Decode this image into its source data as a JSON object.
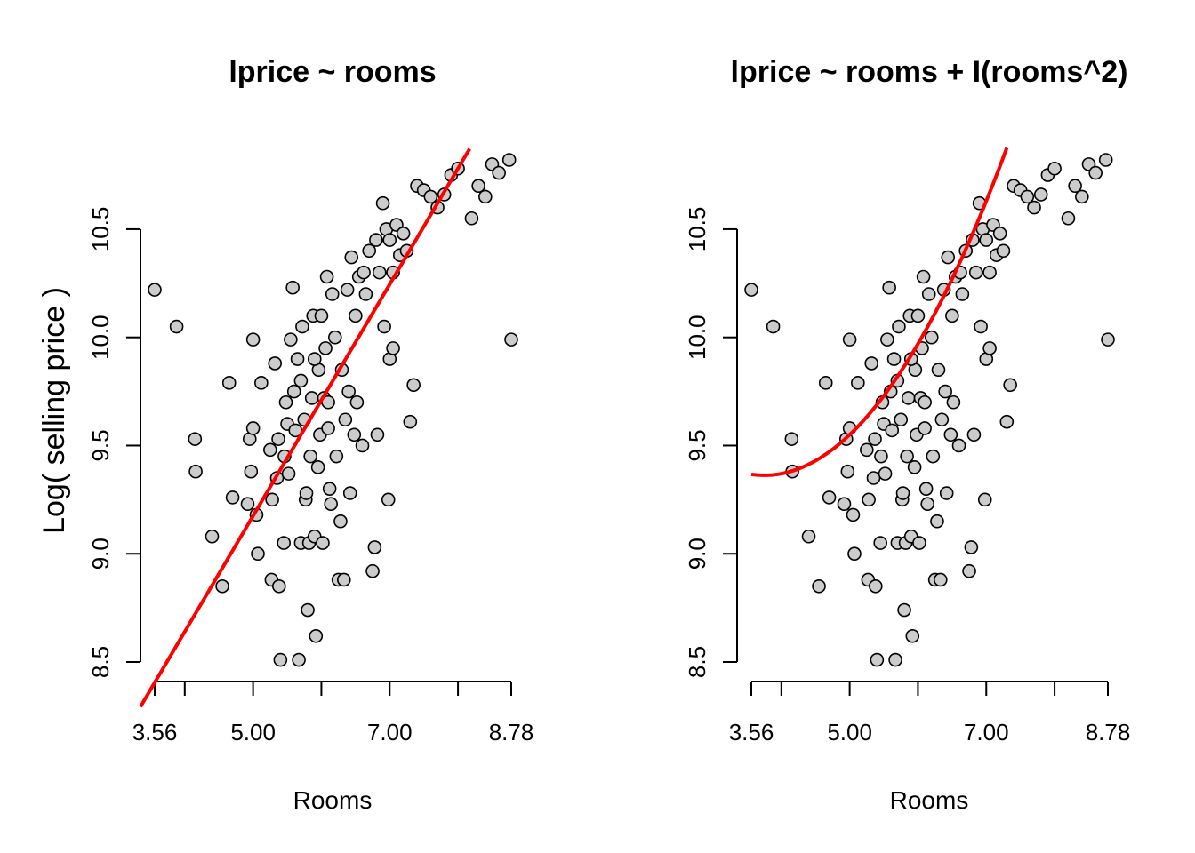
{
  "chart_data": [
    {
      "type": "scatter",
      "title": "lprice ~ rooms",
      "xlabel": "Rooms",
      "ylabel": "Log( selling price )",
      "x_ticks": [
        "3.56",
        "5.00",
        "7.00",
        "8.78"
      ],
      "x_minor_ticks": [
        3.56,
        4,
        5,
        6,
        7,
        8,
        8.78
      ],
      "y_ticks": [
        "8.5",
        "9.0",
        "9.5",
        "10.0",
        "10.5"
      ],
      "xlim": [
        3.56,
        8.78
      ],
      "ylim": [
        8.5,
        10.82
      ],
      "fit": {
        "type": "linear",
        "intercept": 6.5,
        "slope": 0.535,
        "color": "#ff0000"
      },
      "point_color": "#cccccc",
      "series": [
        {
          "values": [
            [
              3.56,
              10.22
            ],
            [
              3.88,
              10.05
            ],
            [
              4.15,
              9.53
            ],
            [
              4.16,
              9.38
            ],
            [
              4.4,
              9.08
            ],
            [
              4.55,
              8.85
            ],
            [
              4.65,
              9.79
            ],
            [
              4.7,
              9.26
            ],
            [
              4.92,
              9.23
            ],
            [
              4.95,
              9.53
            ],
            [
              4.97,
              9.38
            ],
            [
              5.0,
              9.99
            ],
            [
              5.0,
              9.58
            ],
            [
              5.05,
              9.18
            ],
            [
              5.07,
              9.0
            ],
            [
              5.12,
              9.79
            ],
            [
              5.25,
              9.48
            ],
            [
              5.27,
              8.88
            ],
            [
              5.28,
              9.25
            ],
            [
              5.32,
              9.88
            ],
            [
              5.35,
              9.35
            ],
            [
              5.37,
              9.53
            ],
            [
              5.38,
              8.85
            ],
            [
              5.4,
              8.51
            ],
            [
              5.45,
              9.05
            ],
            [
              5.46,
              9.45
            ],
            [
              5.48,
              9.7
            ],
            [
              5.5,
              9.6
            ],
            [
              5.52,
              9.37
            ],
            [
              5.55,
              9.99
            ],
            [
              5.58,
              10.23
            ],
            [
              5.6,
              9.75
            ],
            [
              5.62,
              9.57
            ],
            [
              5.65,
              9.9
            ],
            [
              5.67,
              8.51
            ],
            [
              5.7,
              9.05
            ],
            [
              5.72,
              10.05
            ],
            [
              5.75,
              9.62
            ],
            [
              5.77,
              9.25
            ],
            [
              5.78,
              9.28
            ],
            [
              5.8,
              8.74
            ],
            [
              5.82,
              9.05
            ],
            [
              5.84,
              9.45
            ],
            [
              5.86,
              9.72
            ],
            [
              5.88,
              10.1
            ],
            [
              5.9,
              9.08
            ],
            [
              5.92,
              8.62
            ],
            [
              5.95,
              9.4
            ],
            [
              5.96,
              9.85
            ],
            [
              5.98,
              9.55
            ],
            [
              6.0,
              10.1
            ],
            [
              6.02,
              9.05
            ],
            [
              6.04,
              9.72
            ],
            [
              6.06,
              9.95
            ],
            [
              6.08,
              10.28
            ],
            [
              6.1,
              9.58
            ],
            [
              6.12,
              9.3
            ],
            [
              6.14,
              9.23
            ],
            [
              6.16,
              10.2
            ],
            [
              6.2,
              10.0
            ],
            [
              6.22,
              9.45
            ],
            [
              6.25,
              8.88
            ],
            [
              6.28,
              9.15
            ],
            [
              6.3,
              9.85
            ],
            [
              6.33,
              8.88
            ],
            [
              6.35,
              9.62
            ],
            [
              6.38,
              10.22
            ],
            [
              6.4,
              9.75
            ],
            [
              6.42,
              9.28
            ],
            [
              6.44,
              10.37
            ],
            [
              6.48,
              9.55
            ],
            [
              6.5,
              10.1
            ],
            [
              6.55,
              10.28
            ],
            [
              6.6,
              9.5
            ],
            [
              6.62,
              10.3
            ],
            [
              6.65,
              10.2
            ],
            [
              6.7,
              10.4
            ],
            [
              6.75,
              8.92
            ],
            [
              6.78,
              9.03
            ],
            [
              6.8,
              10.45
            ],
            [
              6.82,
              9.55
            ],
            [
              6.85,
              10.3
            ],
            [
              6.9,
              10.62
            ],
            [
              6.92,
              10.05
            ],
            [
              6.95,
              10.5
            ],
            [
              6.98,
              9.25
            ],
            [
              7.0,
              10.45
            ],
            [
              7.05,
              10.3
            ],
            [
              7.1,
              10.52
            ],
            [
              7.15,
              10.38
            ],
            [
              7.2,
              10.48
            ],
            [
              7.25,
              10.4
            ],
            [
              7.3,
              9.61
            ],
            [
              7.35,
              9.78
            ],
            [
              7.4,
              10.7
            ],
            [
              7.5,
              10.68
            ],
            [
              7.6,
              10.65
            ],
            [
              7.7,
              10.6
            ],
            [
              7.8,
              10.66
            ],
            [
              7.9,
              10.75
            ],
            [
              8.0,
              10.78
            ],
            [
              8.2,
              10.55
            ],
            [
              8.3,
              10.7
            ],
            [
              8.4,
              10.65
            ],
            [
              8.5,
              10.8
            ],
            [
              8.6,
              10.76
            ],
            [
              8.75,
              10.82
            ],
            [
              8.78,
              9.99
            ],
            [
              7.0,
              9.9
            ],
            [
              7.05,
              9.95
            ],
            [
              6.52,
              9.7
            ],
            [
              6.1,
              9.7
            ],
            [
              5.9,
              9.9
            ],
            [
              5.7,
              9.8
            ]
          ]
        }
      ]
    },
    {
      "type": "scatter",
      "title": "lprice ~ rooms + I(rooms^2)",
      "xlabel": "Rooms",
      "ylabel": "",
      "x_ticks": [
        "3.56",
        "5.00",
        "7.00",
        "8.78"
      ],
      "x_minor_ticks": [
        3.56,
        4,
        5,
        6,
        7,
        8,
        8.78
      ],
      "y_ticks": [
        "8.5",
        "9.0",
        "9.5",
        "10.0",
        "10.5"
      ],
      "xlim": [
        3.56,
        8.78
      ],
      "ylim": [
        8.5,
        10.82
      ],
      "fit": {
        "type": "quadratic",
        "a": 0.12,
        "b": -0.9,
        "c": 11.05,
        "color": "#ff0000"
      },
      "point_color": "#cccccc",
      "series": [
        {
          "values": [
            [
              3.56,
              10.22
            ],
            [
              3.88,
              10.05
            ],
            [
              4.15,
              9.53
            ],
            [
              4.16,
              9.38
            ],
            [
              4.4,
              9.08
            ],
            [
              4.55,
              8.85
            ],
            [
              4.65,
              9.79
            ],
            [
              4.7,
              9.26
            ],
            [
              4.92,
              9.23
            ],
            [
              4.95,
              9.53
            ],
            [
              4.97,
              9.38
            ],
            [
              5.0,
              9.99
            ],
            [
              5.0,
              9.58
            ],
            [
              5.05,
              9.18
            ],
            [
              5.07,
              9.0
            ],
            [
              5.12,
              9.79
            ],
            [
              5.25,
              9.48
            ],
            [
              5.27,
              8.88
            ],
            [
              5.28,
              9.25
            ],
            [
              5.32,
              9.88
            ],
            [
              5.35,
              9.35
            ],
            [
              5.37,
              9.53
            ],
            [
              5.38,
              8.85
            ],
            [
              5.4,
              8.51
            ],
            [
              5.45,
              9.05
            ],
            [
              5.46,
              9.45
            ],
            [
              5.48,
              9.7
            ],
            [
              5.5,
              9.6
            ],
            [
              5.52,
              9.37
            ],
            [
              5.55,
              9.99
            ],
            [
              5.58,
              10.23
            ],
            [
              5.6,
              9.75
            ],
            [
              5.62,
              9.57
            ],
            [
              5.65,
              9.9
            ],
            [
              5.67,
              8.51
            ],
            [
              5.7,
              9.05
            ],
            [
              5.72,
              10.05
            ],
            [
              5.75,
              9.62
            ],
            [
              5.77,
              9.25
            ],
            [
              5.78,
              9.28
            ],
            [
              5.8,
              8.74
            ],
            [
              5.82,
              9.05
            ],
            [
              5.84,
              9.45
            ],
            [
              5.86,
              9.72
            ],
            [
              5.88,
              10.1
            ],
            [
              5.9,
              9.08
            ],
            [
              5.92,
              8.62
            ],
            [
              5.95,
              9.4
            ],
            [
              5.96,
              9.85
            ],
            [
              5.98,
              9.55
            ],
            [
              6.0,
              10.1
            ],
            [
              6.02,
              9.05
            ],
            [
              6.04,
              9.72
            ],
            [
              6.06,
              9.95
            ],
            [
              6.08,
              10.28
            ],
            [
              6.1,
              9.58
            ],
            [
              6.12,
              9.3
            ],
            [
              6.14,
              9.23
            ],
            [
              6.16,
              10.2
            ],
            [
              6.2,
              10.0
            ],
            [
              6.22,
              9.45
            ],
            [
              6.25,
              8.88
            ],
            [
              6.28,
              9.15
            ],
            [
              6.3,
              9.85
            ],
            [
              6.33,
              8.88
            ],
            [
              6.35,
              9.62
            ],
            [
              6.38,
              10.22
            ],
            [
              6.4,
              9.75
            ],
            [
              6.42,
              9.28
            ],
            [
              6.44,
              10.37
            ],
            [
              6.48,
              9.55
            ],
            [
              6.5,
              10.1
            ],
            [
              6.55,
              10.28
            ],
            [
              6.6,
              9.5
            ],
            [
              6.62,
              10.3
            ],
            [
              6.65,
              10.2
            ],
            [
              6.7,
              10.4
            ],
            [
              6.75,
              8.92
            ],
            [
              6.78,
              9.03
            ],
            [
              6.8,
              10.45
            ],
            [
              6.82,
              9.55
            ],
            [
              6.85,
              10.3
            ],
            [
              6.9,
              10.62
            ],
            [
              6.92,
              10.05
            ],
            [
              6.95,
              10.5
            ],
            [
              6.98,
              9.25
            ],
            [
              7.0,
              10.45
            ],
            [
              7.05,
              10.3
            ],
            [
              7.1,
              10.52
            ],
            [
              7.15,
              10.38
            ],
            [
              7.2,
              10.48
            ],
            [
              7.25,
              10.4
            ],
            [
              7.3,
              9.61
            ],
            [
              7.35,
              9.78
            ],
            [
              7.4,
              10.7
            ],
            [
              7.5,
              10.68
            ],
            [
              7.6,
              10.65
            ],
            [
              7.7,
              10.6
            ],
            [
              7.8,
              10.66
            ],
            [
              7.9,
              10.75
            ],
            [
              8.0,
              10.78
            ],
            [
              8.2,
              10.55
            ],
            [
              8.3,
              10.7
            ],
            [
              8.4,
              10.65
            ],
            [
              8.5,
              10.8
            ],
            [
              8.6,
              10.76
            ],
            [
              8.75,
              10.82
            ],
            [
              8.78,
              9.99
            ],
            [
              7.0,
              9.9
            ],
            [
              7.05,
              9.95
            ],
            [
              6.52,
              9.7
            ],
            [
              6.1,
              9.7
            ],
            [
              5.9,
              9.9
            ],
            [
              5.7,
              9.8
            ]
          ]
        }
      ]
    }
  ]
}
